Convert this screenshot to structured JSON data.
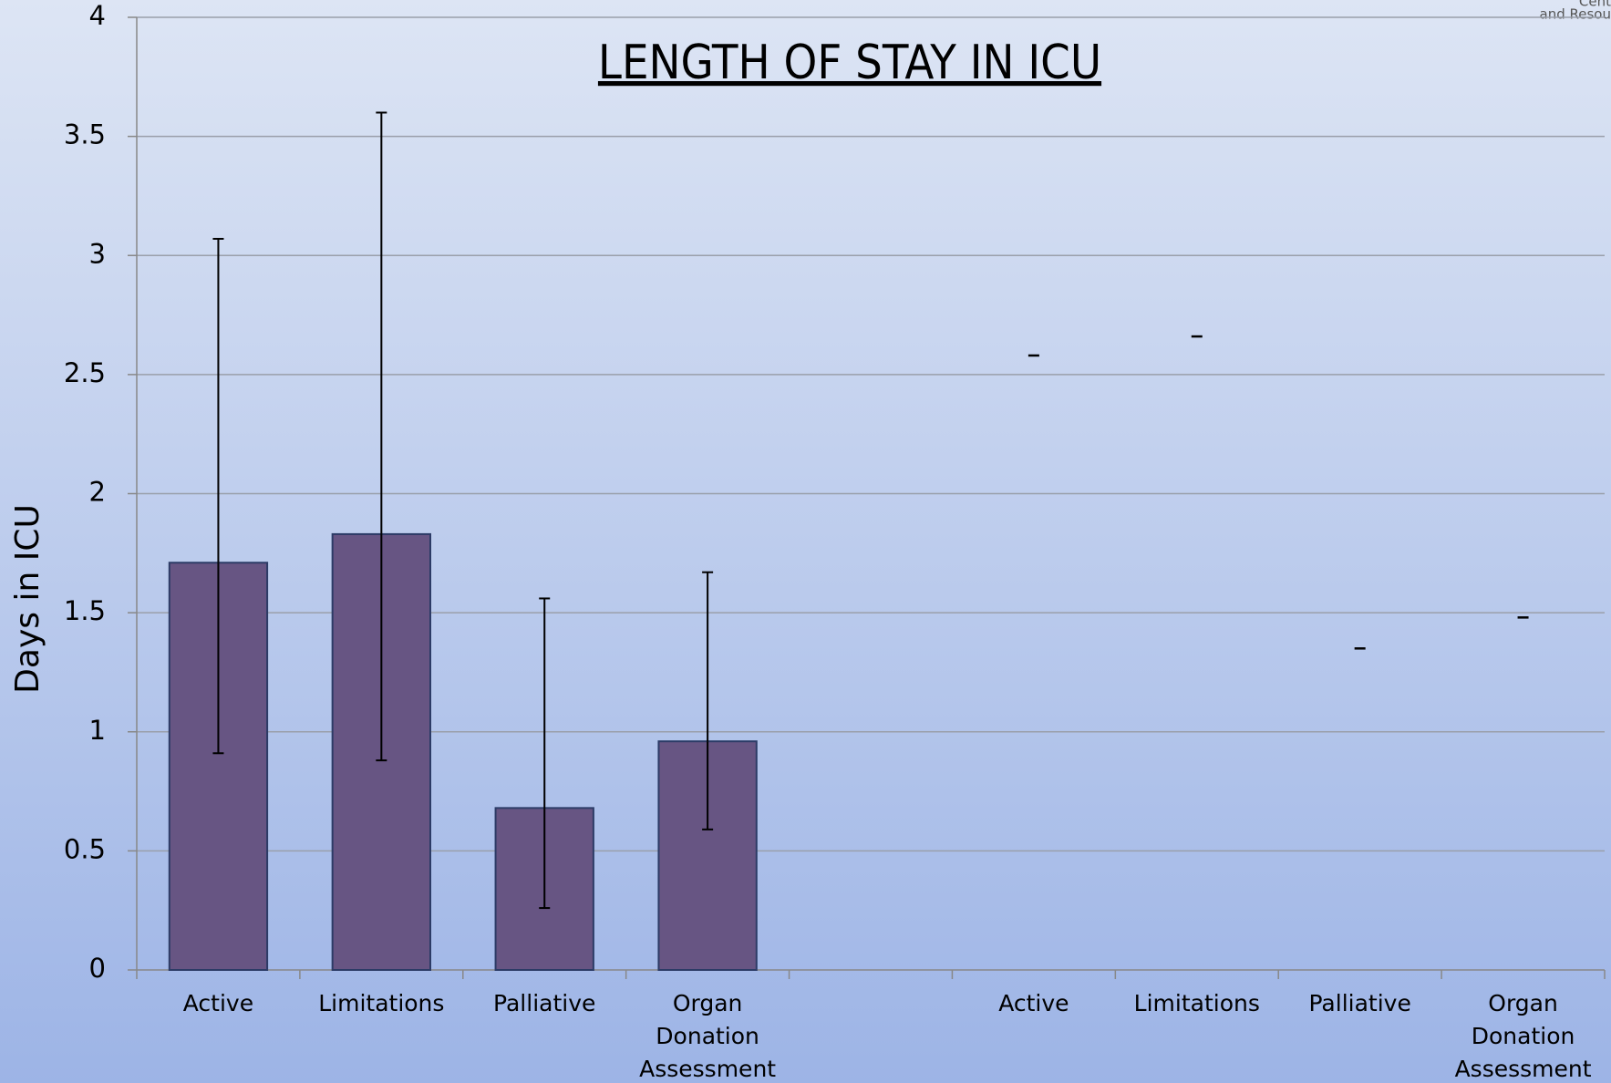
{
  "chart_data": {
    "type": "bar",
    "title": "LENGTH OF STAY IN ICU",
    "y_label": "Days in ICU",
    "corner_text": [
      "Cent",
      "and Resou"
    ],
    "categories": [
      "Active",
      "Limitations",
      "Palliative",
      "Organ Donation Assessment",
      null,
      "Active",
      "Limitations",
      "Palliative",
      "Organ Donation Assessment"
    ],
    "values": [
      1.71,
      1.83,
      0.68,
      0.96,
      null,
      null,
      null,
      null,
      null
    ],
    "errors_minus": [
      0.8,
      0.95,
      0.42,
      0.37,
      null,
      null,
      null,
      null,
      null
    ],
    "errors_plus": [
      1.36,
      1.77,
      0.88,
      0.71,
      null,
      null,
      null,
      null,
      null
    ],
    "marker_values": [
      null,
      null,
      null,
      null,
      null,
      2.58,
      2.66,
      1.35,
      1.48
    ],
    "color": "#675583",
    "ylim": [
      0,
      4
    ],
    "yticks": [
      0,
      0.5,
      1,
      1.5,
      2,
      2.5,
      3,
      3.5,
      4
    ],
    "grid": true
  }
}
